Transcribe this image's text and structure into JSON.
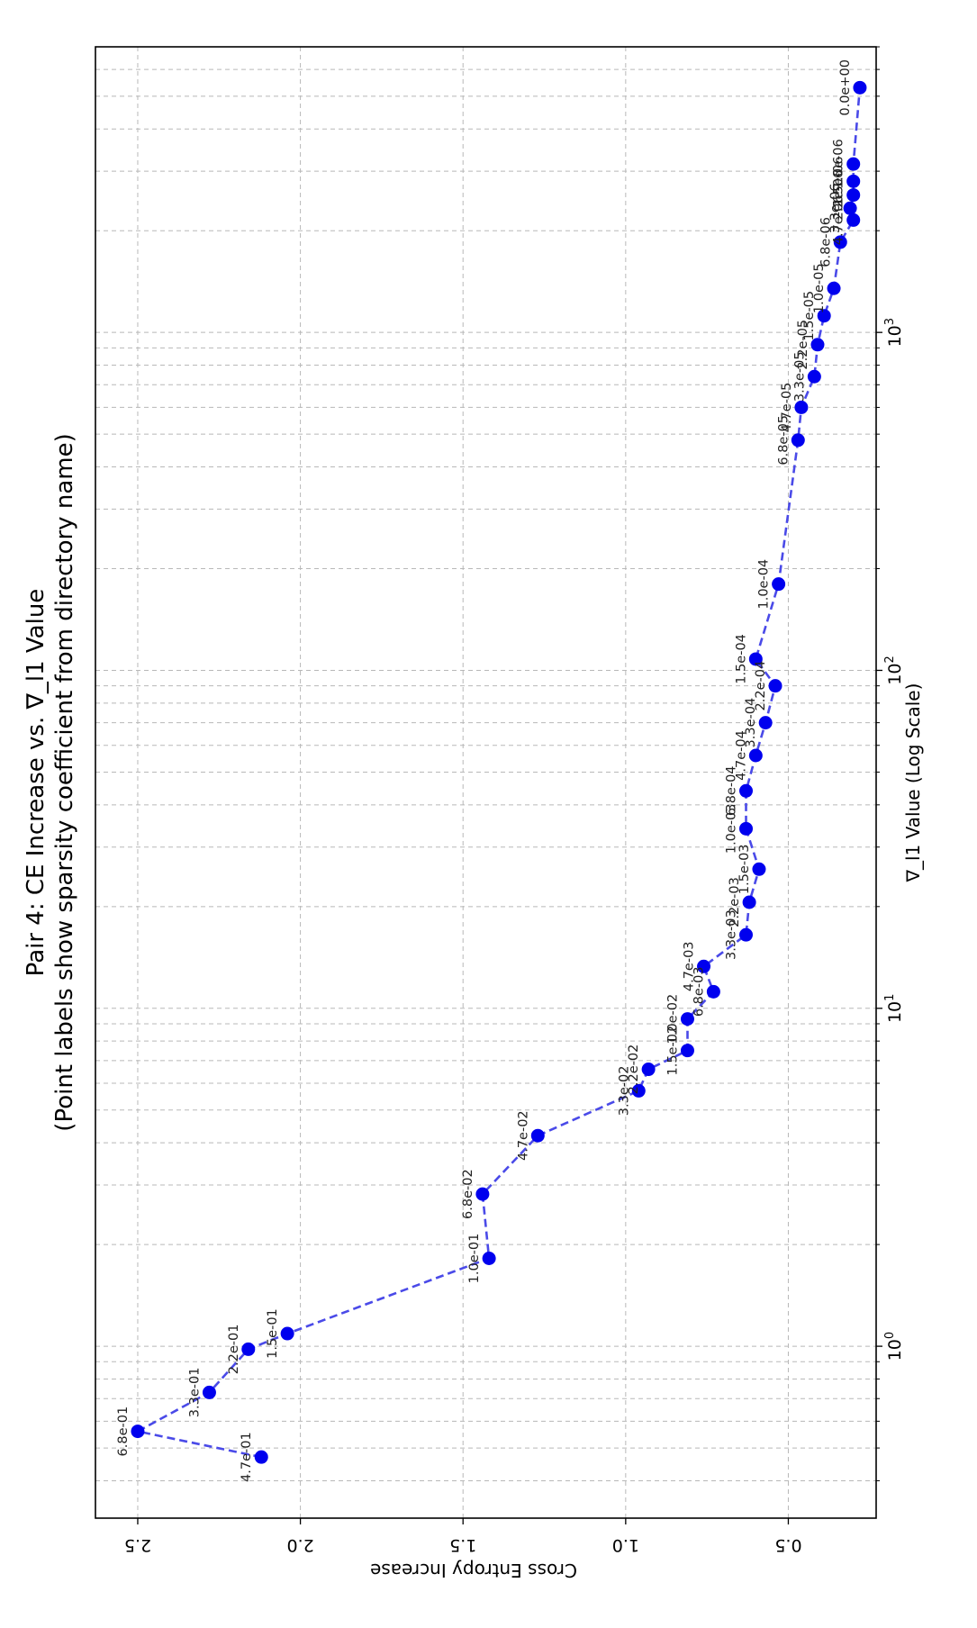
{
  "chart_data": {
    "type": "line",
    "title": "Pair 4: CE Increase vs. ∇_l1 Value",
    "subtitle": "(Point labels show sparsity coefficient from directory name)",
    "xlabel": "∇_l1 Value (Log Scale)",
    "ylabel": "Cross Entropy Increase",
    "xscale": "log",
    "xlim": [
      0.31,
      7000
    ],
    "ylim": [
      0.23,
      2.63
    ],
    "grid": true,
    "x_ticks": [
      1,
      10,
      100,
      1000
    ],
    "x_tick_labels": [
      "10^0",
      "10^1",
      "10^2",
      "10^3"
    ],
    "y_ticks": [
      0.5,
      1.0,
      1.5,
      2.0,
      2.5
    ],
    "y_tick_labels": [
      "0.5",
      "1.0",
      "1.5",
      "2.0",
      "2.5"
    ],
    "series": [
      {
        "name": "CE increase",
        "color": "#0000ee",
        "line_color": "#4a4ae8",
        "points": [
          {
            "x": 0.47,
            "y": 2.12,
            "label": "4.7e-01"
          },
          {
            "x": 0.56,
            "y": 2.5,
            "label": "6.8e-01"
          },
          {
            "x": 0.73,
            "y": 2.28,
            "label": "3.3e-01"
          },
          {
            "x": 0.98,
            "y": 2.16,
            "label": "2.2e-01"
          },
          {
            "x": 1.09,
            "y": 2.04,
            "label": "1.5e-01"
          },
          {
            "x": 1.82,
            "y": 1.42,
            "label": "1.0e-01"
          },
          {
            "x": 2.82,
            "y": 1.44,
            "label": "6.8e-02"
          },
          {
            "x": 4.2,
            "y": 1.27,
            "label": "4.7e-02"
          },
          {
            "x": 5.7,
            "y": 0.96,
            "label": "3.3e-02"
          },
          {
            "x": 6.6,
            "y": 0.93,
            "label": "2.2e-02"
          },
          {
            "x": 7.5,
            "y": 0.81,
            "label": "1.5e-02"
          },
          {
            "x": 9.3,
            "y": 0.81,
            "label": "1.0e-02"
          },
          {
            "x": 11.2,
            "y": 0.73,
            "label": "6.8e-03"
          },
          {
            "x": 13.3,
            "y": 0.76,
            "label": "4.7e-03"
          },
          {
            "x": 16.5,
            "y": 0.63,
            "label": "3.3e-03"
          },
          {
            "x": 20.6,
            "y": 0.62,
            "label": "2.2e-03"
          },
          {
            "x": 25.8,
            "y": 0.59,
            "label": "1.5e-03"
          },
          {
            "x": 34.0,
            "y": 0.63,
            "label": "1.0e-03"
          },
          {
            "x": 44.0,
            "y": 0.63,
            "label": "6.8e-04"
          },
          {
            "x": 56.0,
            "y": 0.6,
            "label": "4.7e-04"
          },
          {
            "x": 70.0,
            "y": 0.57,
            "label": "3.3e-04"
          },
          {
            "x": 90.0,
            "y": 0.54,
            "label": "2.2e-04"
          },
          {
            "x": 108.0,
            "y": 0.6,
            "label": "1.5e-04"
          },
          {
            "x": 180.0,
            "y": 0.53,
            "label": "1.0e-04"
          },
          {
            "x": 480.0,
            "y": 0.47,
            "label": "6.8e-05"
          },
          {
            "x": 600.0,
            "y": 0.46,
            "label": "4.7e-05"
          },
          {
            "x": 740.0,
            "y": 0.42,
            "label": "3.3e-05"
          },
          {
            "x": 920.0,
            "y": 0.41,
            "label": "2.2e-05"
          },
          {
            "x": 1120.0,
            "y": 0.39,
            "label": "1.5e-05"
          },
          {
            "x": 1350.0,
            "y": 0.36,
            "label": "1.0e-05"
          },
          {
            "x": 1850.0,
            "y": 0.34,
            "label": "6.8e-06"
          },
          {
            "x": 2150.0,
            "y": 0.3,
            "label": "4.7e-06"
          },
          {
            "x": 2330.0,
            "y": 0.31,
            "label": "3.3e-06"
          },
          {
            "x": 2550.0,
            "y": 0.3,
            "label": "2.2e-06"
          },
          {
            "x": 2800.0,
            "y": 0.3,
            "label": "1.5e-06"
          },
          {
            "x": 3150.0,
            "y": 0.3,
            "label": "1.0e-06"
          },
          {
            "x": 5300.0,
            "y": 0.28,
            "label": "0.0e+00"
          }
        ]
      }
    ]
  }
}
